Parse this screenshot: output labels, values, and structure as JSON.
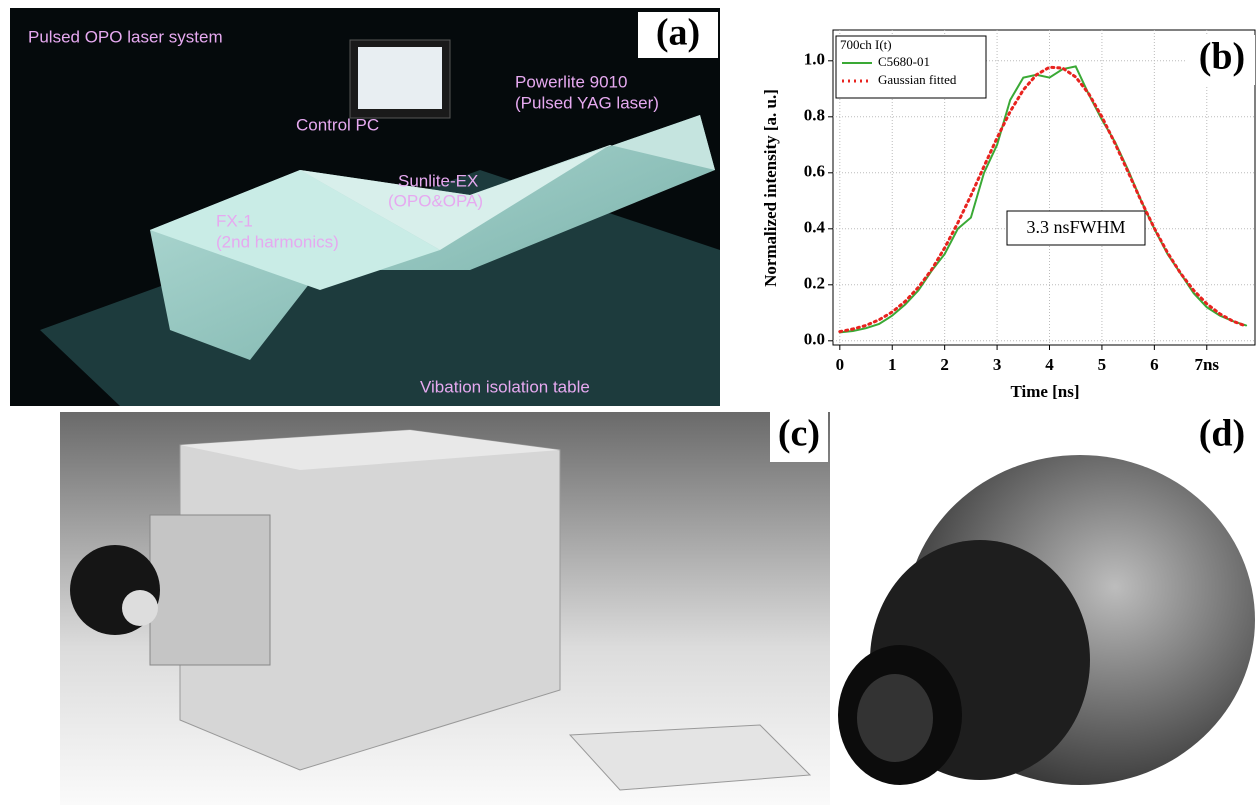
{
  "panels": {
    "a": {
      "label": "(a)",
      "texts": [
        "Pulsed OPO laser system",
        "Control PC",
        "Powerlite 9010",
        "(Pulsed YAG laser)",
        "Sunlite-EX",
        "(OPO&OPA)",
        "FX-1",
        "(2nd harmonics)",
        "Vibation isolation table"
      ]
    },
    "c": {
      "label": "(c)"
    },
    "d": {
      "label": "(d)"
    }
  },
  "chart_data": {
    "type": "line",
    "panel_label": "(b)",
    "x_label": "Time [ns]",
    "y_label": "Normalized intensity [a. u.]",
    "legend_title": "700ch I(t)",
    "annotation": "3.3 nsFWHM",
    "grid": true,
    "xlim": [
      -0.13,
      7.92
    ],
    "ylim": [
      -0.015,
      1.11
    ],
    "xticks": [
      0,
      1,
      2,
      3,
      4,
      5,
      6,
      {
        "value": 7,
        "label": "7ns"
      }
    ],
    "yticks": [
      {
        "value": 0,
        "label": "0.0"
      },
      {
        "value": 0.2,
        "label": "0.2"
      },
      {
        "value": 0.4,
        "label": "0.4"
      },
      {
        "value": 0.6,
        "label": "0.6"
      },
      {
        "value": 0.8,
        "label": "0.8"
      },
      {
        "value": 1,
        "label": "1.0"
      }
    ],
    "x": [
      0,
      0.25,
      0.5,
      0.75,
      1,
      1.25,
      1.5,
      1.75,
      2,
      2.25,
      2.5,
      2.75,
      3,
      3.25,
      3.5,
      3.75,
      4,
      4.25,
      4.5,
      4.75,
      5,
      5.25,
      5.5,
      5.75,
      6,
      6.25,
      6.5,
      6.75,
      7,
      7.25,
      7.5,
      7.75
    ],
    "series": [
      {
        "name": "C5680-01",
        "color": "#3aa935",
        "dash": "solid",
        "values": [
          0.03,
          0.035,
          0.045,
          0.06,
          0.09,
          0.13,
          0.18,
          0.25,
          0.31,
          0.4,
          0.44,
          0.6,
          0.7,
          0.86,
          0.94,
          0.95,
          0.94,
          0.97,
          0.98,
          0.88,
          0.79,
          0.71,
          0.61,
          0.5,
          0.4,
          0.31,
          0.24,
          0.17,
          0.12,
          0.09,
          0.07,
          0.055
        ]
      },
      {
        "name": "Gaussian fitted",
        "color": "#e8231f",
        "dash": "dotted",
        "values": [
          0.033,
          0.042,
          0.055,
          0.075,
          0.103,
          0.141,
          0.191,
          0.254,
          0.332,
          0.421,
          0.519,
          0.623,
          0.725,
          0.819,
          0.896,
          0.95,
          0.977,
          0.974,
          0.942,
          0.882,
          0.8,
          0.705,
          0.603,
          0.499,
          0.402,
          0.315,
          0.241,
          0.18,
          0.132,
          0.096,
          0.07,
          0.052
        ]
      }
    ]
  }
}
